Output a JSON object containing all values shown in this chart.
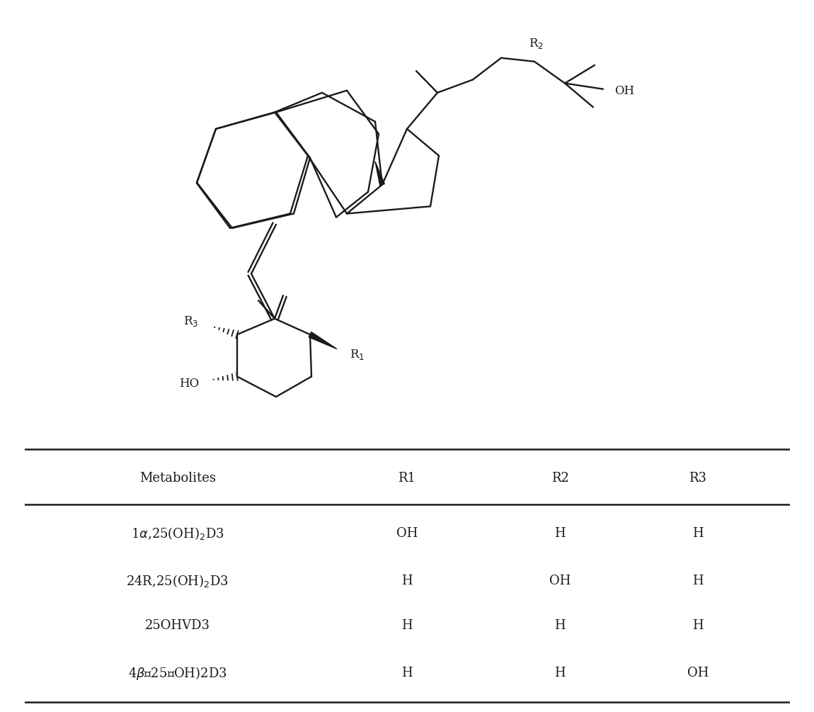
{
  "background_color": "#ffffff",
  "table_headers": [
    "Metabolites",
    "R1",
    "R2",
    "R3"
  ],
  "table_rows": [
    [
      "1α,25(OH)₂D3",
      "OH",
      "H",
      "H"
    ],
    [
      "24R,25(OH)₂D3",
      "H",
      "OH",
      "H"
    ],
    [
      "25OHVD3",
      "H",
      "H",
      "H"
    ],
    [
      "4β， 25 （OH）2D3",
      "H",
      "H",
      "OH"
    ]
  ],
  "line_color": "#1a1a1a",
  "text_color": "#1a1a1a",
  "font_size_table": 13
}
